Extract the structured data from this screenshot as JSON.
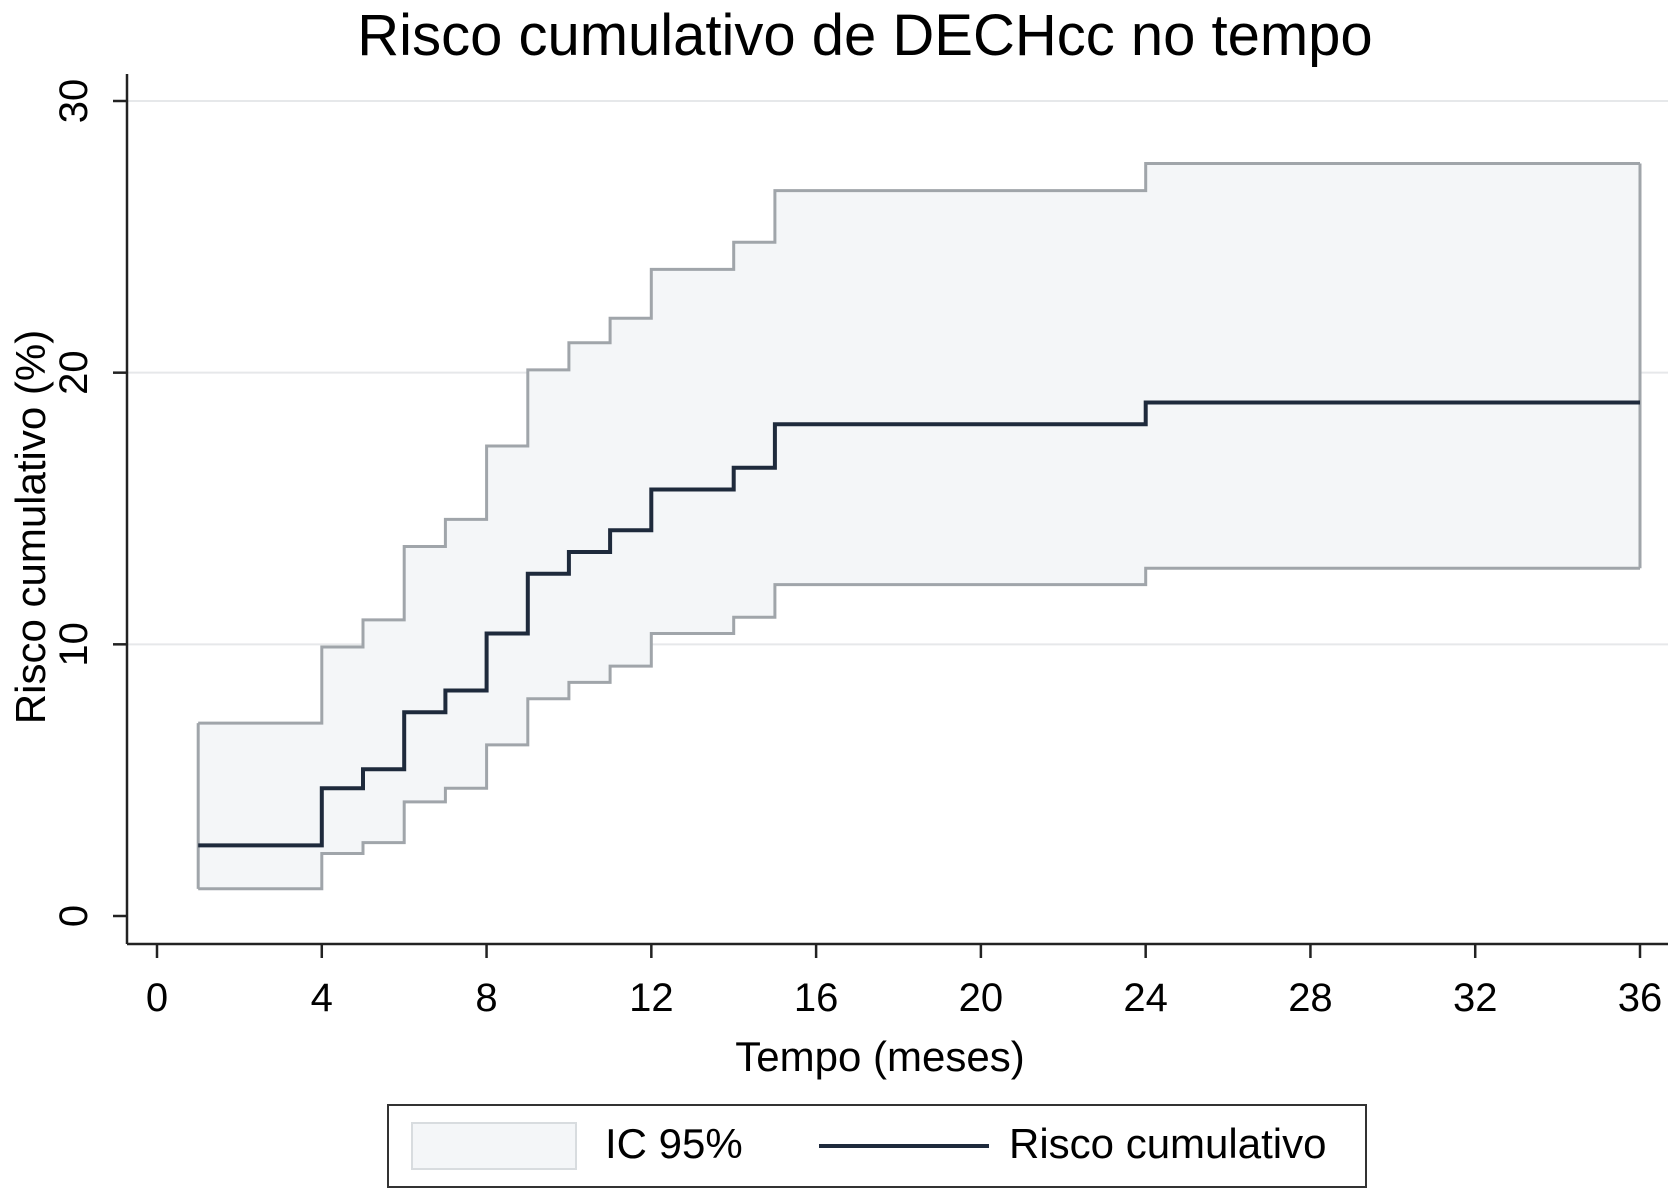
{
  "chart_data": {
    "type": "line",
    "title": "Risco cumulativo de DECHcc no tempo",
    "xlabel": "Tempo (meses)",
    "ylabel": "Risco cumulativo (%)",
    "xticks": [
      0,
      4,
      8,
      12,
      16,
      20,
      24,
      28,
      32,
      36
    ],
    "yticks": [
      0,
      10,
      20,
      30
    ],
    "xlim": [
      0,
      36
    ],
    "ylim": [
      0,
      30
    ],
    "grid": "horizontal",
    "legend_position": "bottom",
    "colors": {
      "line": "#1e2a3c",
      "band_fill": "#f4f6f8",
      "band_edge": "#a0a5aa",
      "grid": "#e6e8ea"
    },
    "series": [
      {
        "name": "Risco cumulativo",
        "style": "step",
        "x": [
          1,
          4,
          5,
          6,
          7,
          8,
          9,
          10,
          11,
          12,
          14,
          15,
          24,
          36
        ],
        "y": [
          2.6,
          4.7,
          5.4,
          7.5,
          8.3,
          10.4,
          12.6,
          13.4,
          14.2,
          15.7,
          16.5,
          18.1,
          18.9,
          18.9
        ]
      },
      {
        "name": "IC 95%",
        "style": "band",
        "x": [
          1,
          4,
          5,
          6,
          7,
          8,
          9,
          10,
          11,
          12,
          14,
          15,
          24,
          36
        ],
        "lower": [
          1.0,
          2.3,
          2.7,
          4.2,
          4.7,
          6.3,
          8.0,
          8.6,
          9.2,
          10.4,
          11.0,
          12.2,
          12.8,
          12.8
        ],
        "upper": [
          7.1,
          9.9,
          10.9,
          13.6,
          14.6,
          17.3,
          20.1,
          21.1,
          22.0,
          23.8,
          24.8,
          26.7,
          27.7,
          27.7
        ]
      }
    ]
  },
  "legend": {
    "band_label": "IC 95%",
    "line_label": "Risco cumulativo"
  }
}
